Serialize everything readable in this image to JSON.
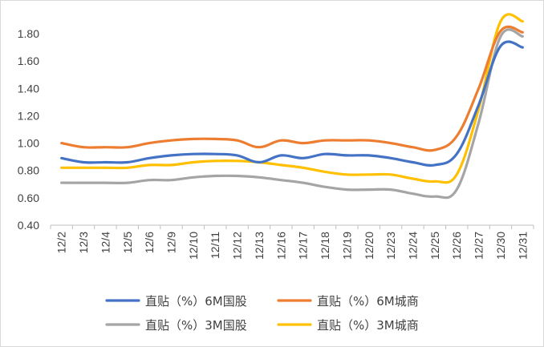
{
  "chart_data": {
    "type": "line",
    "title": "",
    "xlabel": "",
    "ylabel": "",
    "categories": [
      "12/2",
      "12/3",
      "12/4",
      "12/5",
      "12/6",
      "12/9",
      "12/10",
      "12/11",
      "12/12",
      "12/13",
      "12/16",
      "12/17",
      "12/18",
      "12/19",
      "12/20",
      "12/23",
      "12/24",
      "12/25",
      "12/26",
      "12/27",
      "12/30",
      "12/31"
    ],
    "ylim": [
      0.4,
      1.8
    ],
    "yticks": [
      "0.40",
      "0.60",
      "0.80",
      "1.00",
      "1.20",
      "1.40",
      "1.60",
      "1.80"
    ],
    "grid": false,
    "legend_position": "bottom",
    "series": [
      {
        "name": "直贴（%）6M国股",
        "color": "#4472C4",
        "values": [
          0.89,
          0.86,
          0.86,
          0.86,
          0.89,
          0.91,
          0.92,
          0.92,
          0.91,
          0.86,
          0.91,
          0.89,
          0.92,
          0.91,
          0.91,
          0.89,
          0.86,
          0.84,
          0.92,
          1.28,
          1.71,
          1.7
        ]
      },
      {
        "name": "直贴（%）6M城商",
        "color": "#ED7D31",
        "values": [
          1.0,
          0.97,
          0.97,
          0.97,
          1.0,
          1.02,
          1.03,
          1.03,
          1.02,
          0.97,
          1.02,
          1.0,
          1.02,
          1.02,
          1.02,
          1.0,
          0.97,
          0.95,
          1.05,
          1.4,
          1.82,
          1.81
        ]
      },
      {
        "name": "直贴（%）3M国股",
        "color": "#A5A5A5",
        "values": [
          0.71,
          0.71,
          0.71,
          0.71,
          0.73,
          0.73,
          0.75,
          0.76,
          0.76,
          0.75,
          0.73,
          0.71,
          0.68,
          0.66,
          0.66,
          0.66,
          0.63,
          0.61,
          0.66,
          1.15,
          1.78,
          1.78
        ]
      },
      {
        "name": "直贴（%）3M城商",
        "color": "#FFC000",
        "values": [
          0.82,
          0.82,
          0.82,
          0.82,
          0.84,
          0.84,
          0.86,
          0.87,
          0.87,
          0.86,
          0.84,
          0.82,
          0.79,
          0.77,
          0.77,
          0.77,
          0.74,
          0.72,
          0.77,
          1.25,
          1.89,
          1.89
        ]
      }
    ]
  }
}
